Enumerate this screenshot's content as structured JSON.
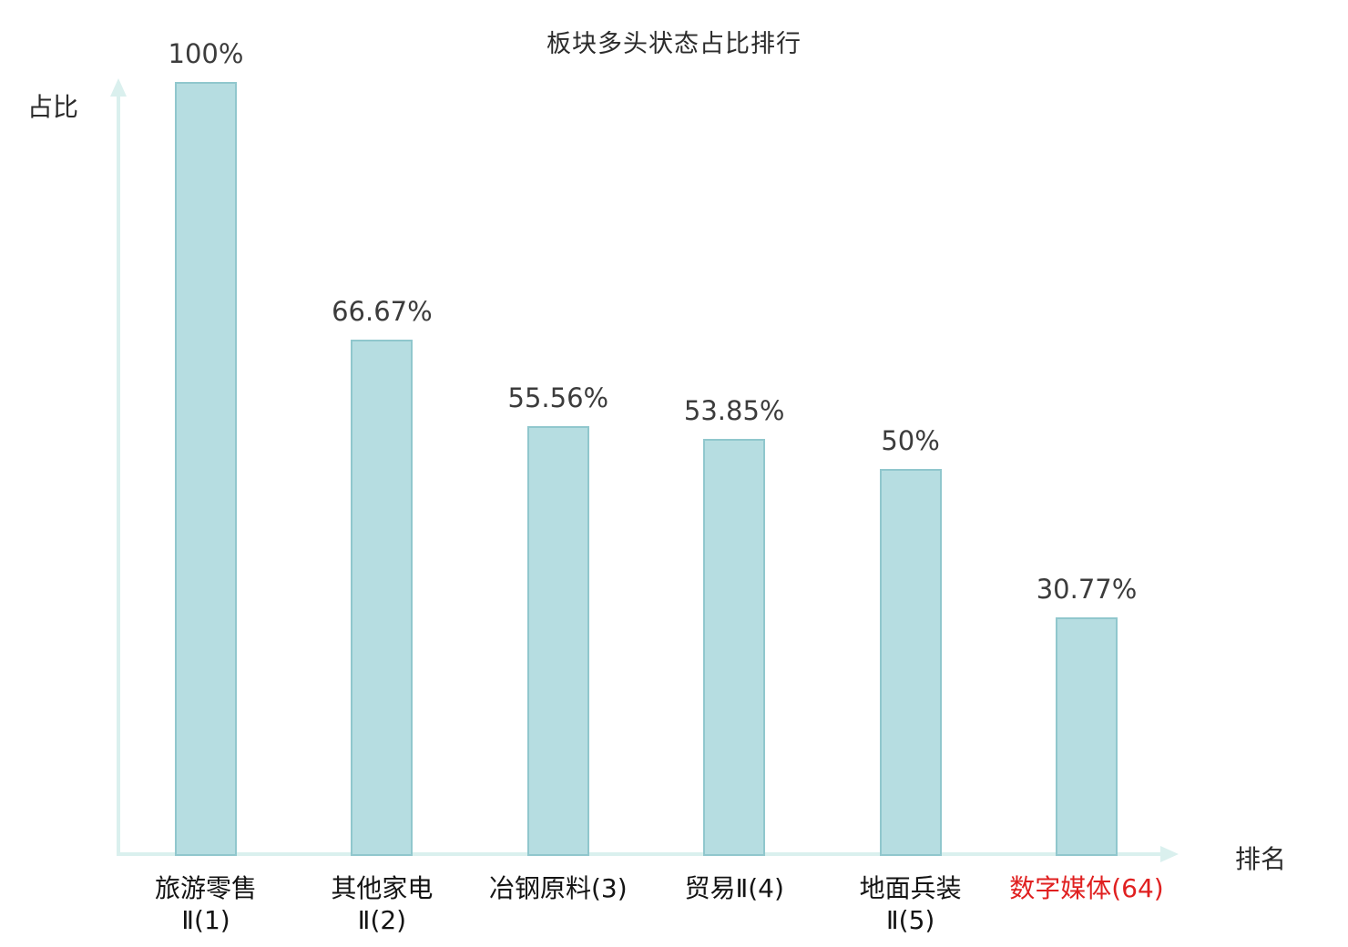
{
  "title": "板块多头状态占比排行",
  "axes": {
    "y_label": "占比",
    "x_label": "排名"
  },
  "colors": {
    "bar_fill": "#b6dde1",
    "bar_border": "#90c7cd",
    "axis": "#daf0ee",
    "value_label": "#3c3c3c",
    "highlight": "#e02020"
  },
  "chart_data": {
    "type": "bar",
    "title": "板块多头状态占比排行",
    "xlabel": "排名",
    "ylabel": "占比",
    "ylim": [
      0,
      100
    ],
    "grid": false,
    "legend": "none",
    "categories": [
      "旅游零售Ⅱ(1)",
      "其他家电Ⅱ(2)",
      "冶钢原料(3)",
      "贸易Ⅱ(4)",
      "地面兵装Ⅱ(5)",
      "数字媒体(64)"
    ],
    "category_lines": [
      [
        "旅游零售",
        "Ⅱ(1)"
      ],
      [
        "其他家电",
        "Ⅱ(2)"
      ],
      [
        "冶钢原料(3)"
      ],
      [
        "贸易Ⅱ(4)"
      ],
      [
        "地面兵装",
        "Ⅱ(5)"
      ],
      [
        "数字媒体(64)"
      ]
    ],
    "values": [
      100,
      66.67,
      55.56,
      53.85,
      50,
      30.77
    ],
    "value_labels": [
      "100%",
      "66.67%",
      "55.56%",
      "53.85%",
      "50%",
      "30.77%"
    ],
    "highlight_index": 5
  }
}
